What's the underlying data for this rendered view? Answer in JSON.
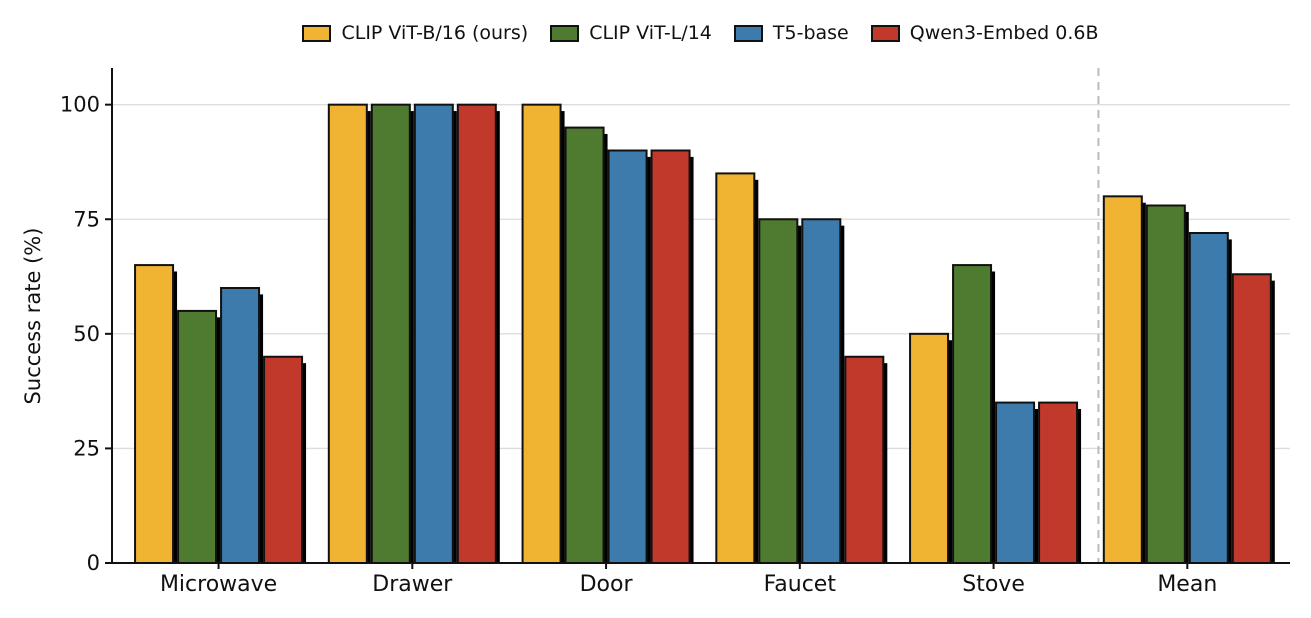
{
  "chart_data": {
    "type": "bar",
    "ylabel": "Success rate (%)",
    "xlabel": "",
    "ylim": [
      0,
      108
    ],
    "yticks": [
      0,
      25,
      50,
      75,
      100
    ],
    "grid": true,
    "legend_position": "top-center",
    "categories": [
      "Microwave",
      "Drawer",
      "Door",
      "Faucet",
      "Stove",
      "Mean"
    ],
    "separator_before_category": "Mean",
    "series": [
      {
        "name": "CLIP ViT-B/16 (ours)",
        "color": "#F0B432",
        "values": [
          65,
          100,
          100,
          85,
          50,
          80
        ]
      },
      {
        "name": "CLIP ViT-L/14",
        "color": "#4E7B2F",
        "values": [
          55,
          100,
          95,
          75,
          65,
          78
        ]
      },
      {
        "name": "T5-base",
        "color": "#3D7BAD",
        "values": [
          60,
          100,
          90,
          75,
          35,
          72
        ]
      },
      {
        "name": "Qwen3-Embed 0.6B",
        "color": "#C0392B",
        "values": [
          45,
          100,
          90,
          45,
          35,
          63
        ]
      }
    ]
  }
}
